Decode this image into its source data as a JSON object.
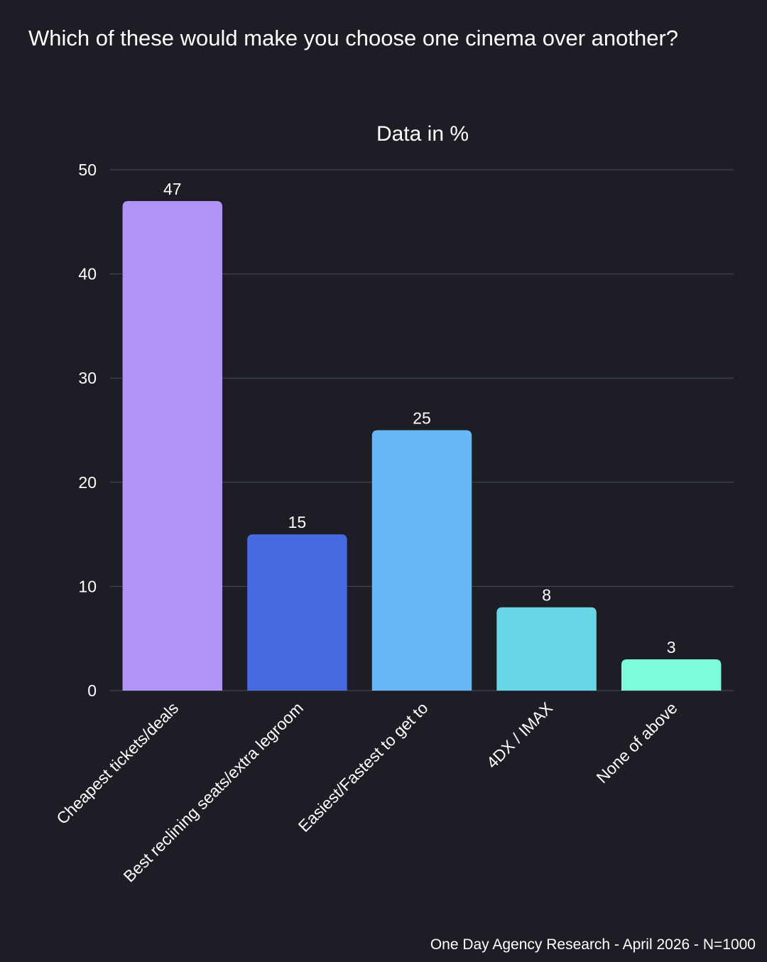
{
  "page": {
    "title": "Which of these would make you choose one cinema over another?",
    "footer": "One Day Agency Research - April 2026 - N=1000"
  },
  "chart_data": {
    "type": "bar",
    "title": "Data in %",
    "xlabel": "",
    "ylabel": "",
    "ylim": [
      0,
      50
    ],
    "yticks": [
      0,
      10,
      20,
      30,
      40,
      50
    ],
    "grid": true,
    "categories": [
      "Cheapest tickets/deals",
      "Best reclining seats/extra legroom",
      "Easiest/Fastest to get to",
      "4DX / IMAX",
      "None of above"
    ],
    "values": [
      47,
      15,
      25,
      8,
      3
    ],
    "colors": [
      "#b194f5",
      "#476ae0",
      "#68b8f8",
      "#69d6e6",
      "#7efbd9"
    ],
    "background": "#1d1e25",
    "grid_color": "#4a4b53"
  }
}
